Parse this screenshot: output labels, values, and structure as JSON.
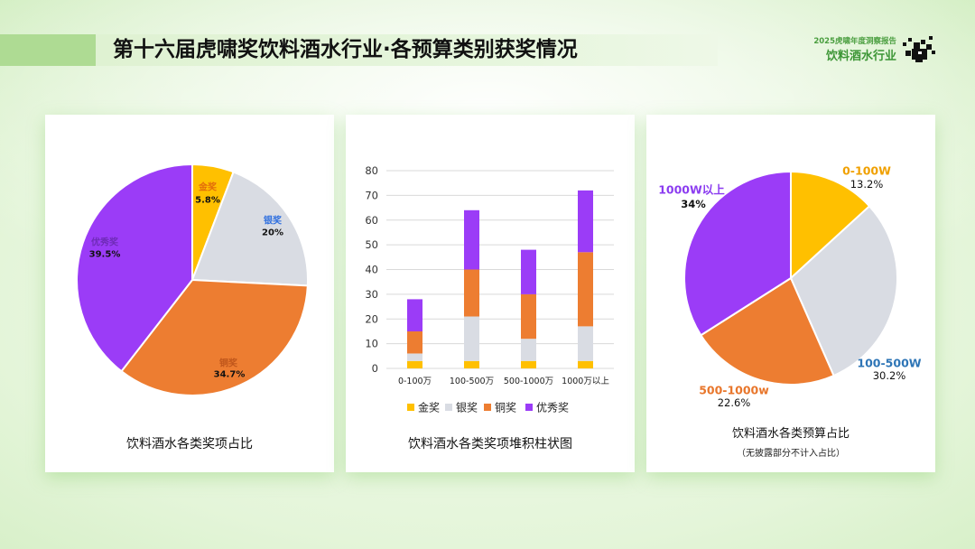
{
  "header": {
    "title": "第十六届虎啸奖饮料酒水行业·各预算类别获奖情况",
    "report_name": "2025虎啸年度洞察报告",
    "industry": "饮料酒水行业",
    "logo_icon": "brand-logo-icon"
  },
  "colors": {
    "title_accent": "#aedb93",
    "brand_green": "#3d9636",
    "background": "#e6f5dc"
  },
  "chart_data": [
    {
      "type": "pie",
      "title": "饮料酒水各类奖项占比",
      "slices": [
        {
          "label": "金奖",
          "value": 5.8,
          "percent": "5.8%",
          "color": "#ffc000",
          "label_color": "#e36c0a"
        },
        {
          "label": "银奖",
          "value": 20,
          "percent": "20%",
          "color": "#d9dce3",
          "label_color": "#2f6fdf"
        },
        {
          "label": "铜奖",
          "value": 34.7,
          "percent": "34.7%",
          "color": "#ed7d31",
          "label_color": "#c0561b"
        },
        {
          "label": "优秀奖",
          "value": 39.5,
          "percent": "39.5%",
          "color": "#9b3cf7",
          "label_color": "#6f2bb8"
        }
      ]
    },
    {
      "type": "bar",
      "stacked": true,
      "title": "饮料酒水各类奖项堆积柱状图",
      "categories": [
        "0-100万",
        "100-500万",
        "500-1000万",
        "1000万以上"
      ],
      "series": [
        {
          "name": "金奖",
          "color": "#ffc000",
          "values": [
            3,
            3,
            3,
            3
          ]
        },
        {
          "name": "银奖",
          "color": "#d9dce3",
          "values": [
            3,
            18,
            9,
            14
          ]
        },
        {
          "name": "铜奖",
          "color": "#ed7d31",
          "values": [
            9,
            19,
            18,
            30
          ]
        },
        {
          "name": "优秀奖",
          "color": "#9b3cf7",
          "values": [
            13,
            24,
            18,
            25
          ]
        }
      ],
      "ylim": [
        0,
        80
      ],
      "yticks": [
        0,
        10,
        20,
        30,
        40,
        50,
        60,
        70,
        80
      ],
      "grid": true,
      "legend": "bottom"
    },
    {
      "type": "pie",
      "title": "饮料酒水各类预算占比",
      "note": "（无披露部分不计入占比）",
      "slices": [
        {
          "label": "0-100W",
          "value": 13.2,
          "percent": "13.2%",
          "color": "#ffc000",
          "label_color": "#f0a000"
        },
        {
          "label": "100-500W",
          "value": 30.2,
          "percent": "30.2%",
          "color": "#d9dce3",
          "label_color": "#2e75b6"
        },
        {
          "label": "500-1000w",
          "value": 22.6,
          "percent": "22.6%",
          "color": "#ed7d31",
          "label_color": "#e8762b"
        },
        {
          "label": "1000W以上",
          "value": 34,
          "percent": "34%",
          "color": "#9b3cf7",
          "label_color": "#8b3cf0"
        }
      ]
    }
  ]
}
